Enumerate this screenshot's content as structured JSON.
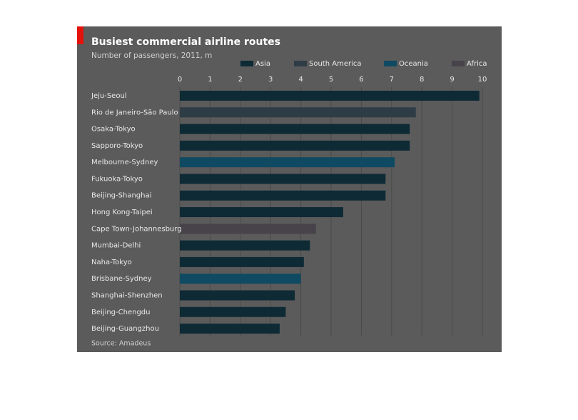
{
  "chart_data": {
    "type": "barh",
    "title": "Busiest commercial airline routes",
    "subtitle": "Number of passengers, 2011, m",
    "categories": [
      "Jeju-Seoul",
      "Rio de Janeiro-São Paulo",
      "Osaka-Tokyo",
      "Sapporo-Tokyo",
      "Melbourne-Sydney",
      "Fukuoka-Tokyo",
      "Beijing-Shanghai",
      "Hong Kong-Taipei",
      "Cape Town-Johannesburg",
      "Mumbai-Delhi",
      "Naha-Tokyo",
      "Brisbane-Sydney",
      "Shanghai-Shenzhen",
      "Beijing-Chengdu",
      "Beijing-Guangzhou"
    ],
    "series": [
      {
        "name": "Asia",
        "color": "#0e2a35",
        "values": [
          9.9,
          null,
          7.6,
          7.6,
          null,
          6.8,
          6.8,
          5.4,
          null,
          4.3,
          4.1,
          null,
          3.8,
          3.5,
          3.3
        ]
      },
      {
        "name": "South America",
        "color": "#2e3c46",
        "values": [
          null,
          7.8,
          null,
          null,
          null,
          null,
          null,
          null,
          null,
          null,
          null,
          null,
          null,
          null,
          null
        ]
      },
      {
        "name": "Oceania",
        "color": "#0f4a62",
        "values": [
          null,
          null,
          null,
          null,
          7.1,
          null,
          null,
          null,
          null,
          null,
          null,
          4.0,
          null,
          null,
          null
        ]
      },
      {
        "name": "Africa",
        "color": "#48434a",
        "values": [
          null,
          null,
          null,
          null,
          null,
          null,
          null,
          null,
          4.5,
          null,
          null,
          null,
          null,
          null,
          null
        ]
      }
    ],
    "xlim": [
      0,
      10
    ],
    "xticks": [
      0,
      1,
      2,
      3,
      4,
      5,
      6,
      7,
      8,
      9,
      10
    ],
    "grid": true,
    "source": "Source: Amadeus"
  }
}
